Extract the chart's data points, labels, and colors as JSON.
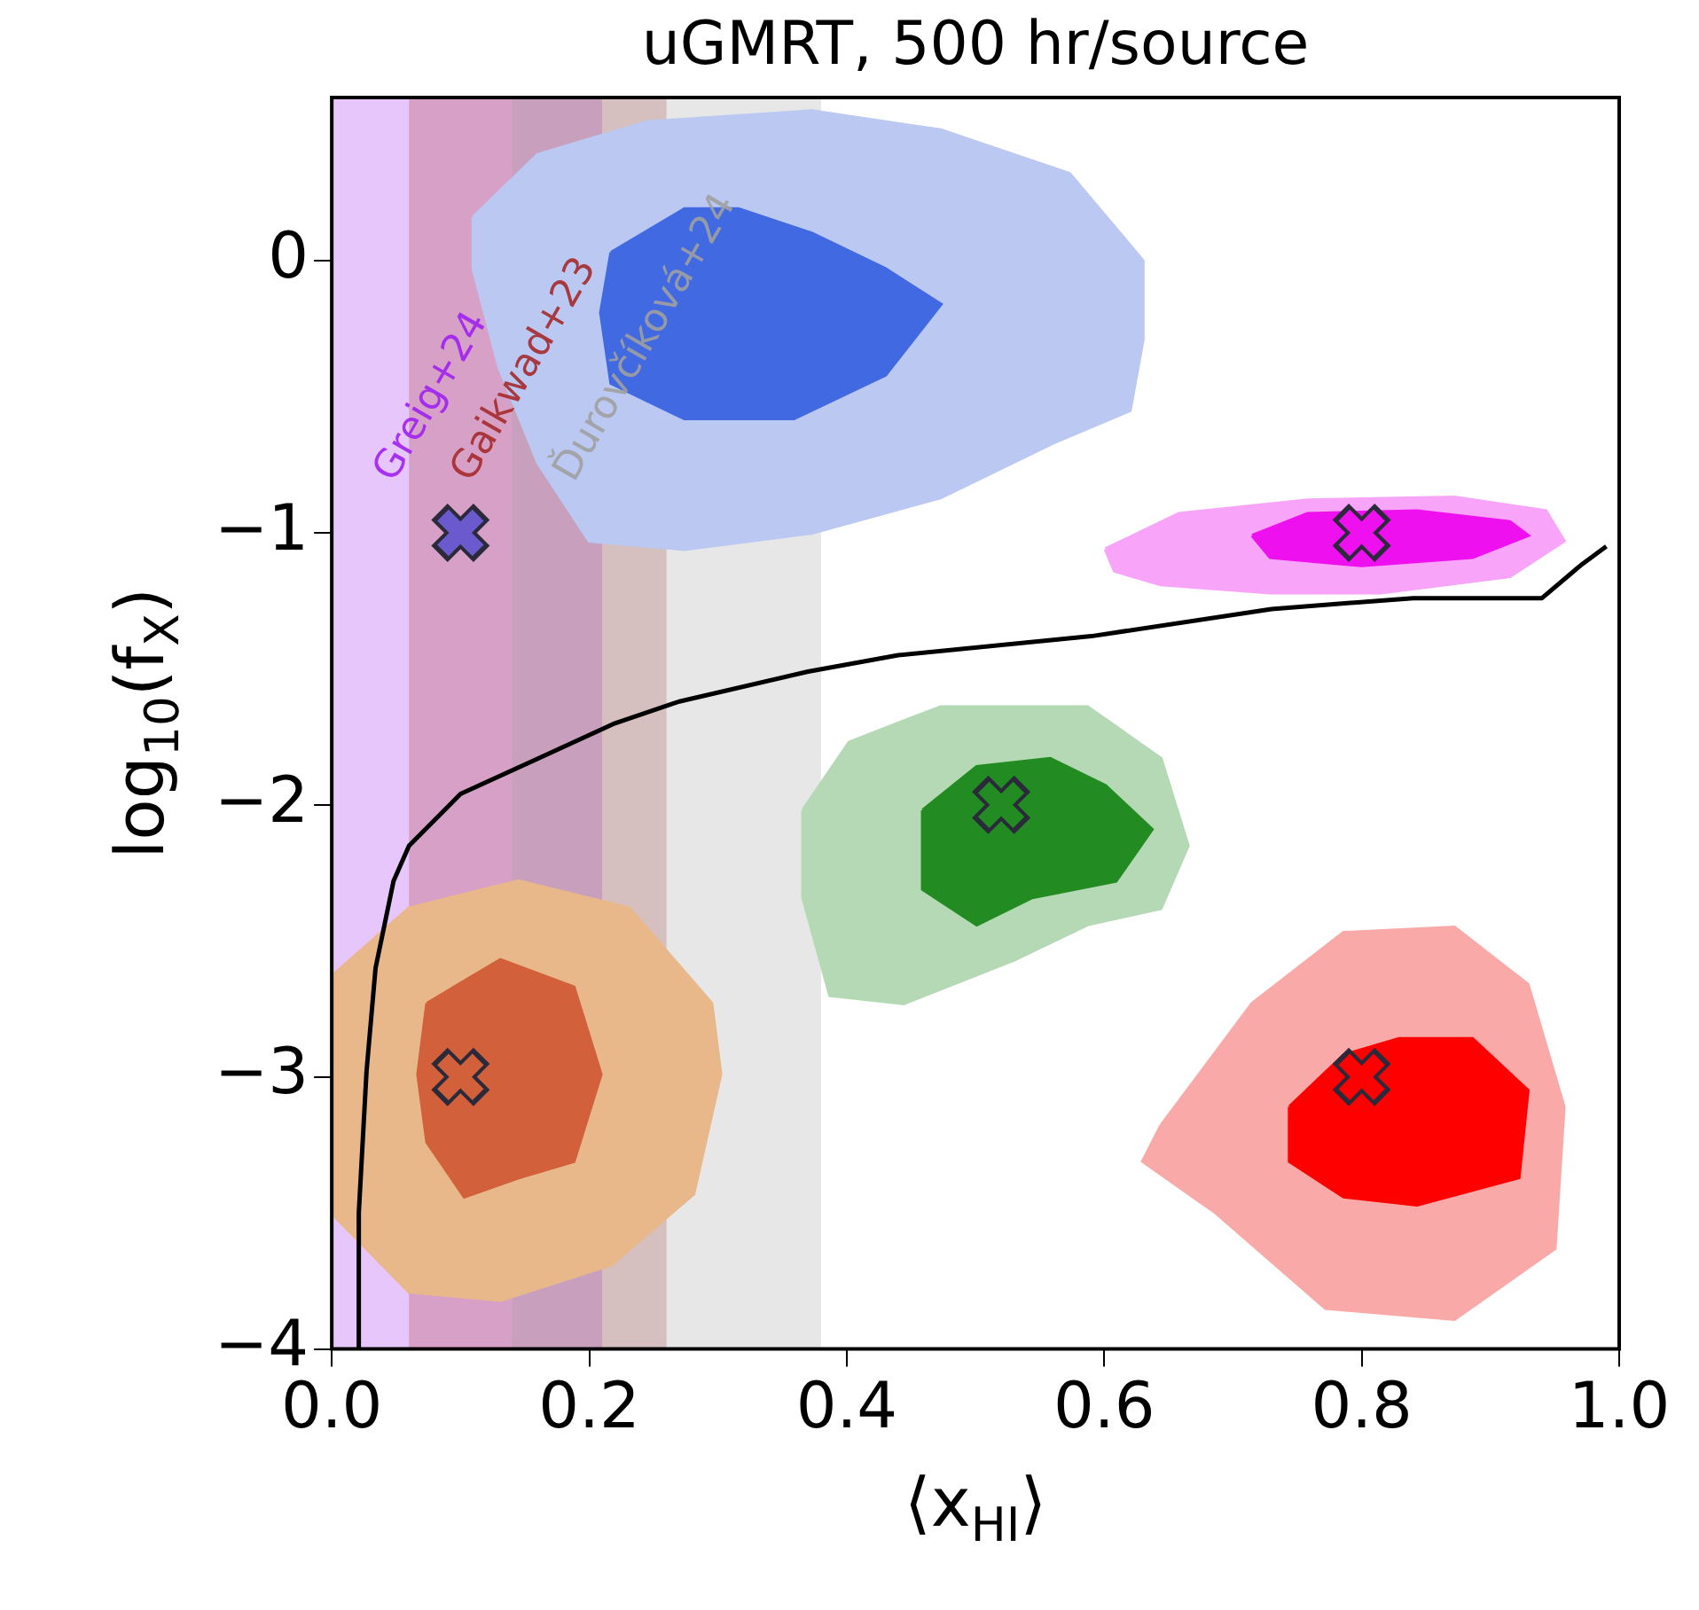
{
  "chart_data": {
    "type": "area",
    "title": "uGMRT, 500 hr/source",
    "xlabel": "⟨x$_{HI}$⟩",
    "ylabel": "log$_{10}$(f$_{X}$)",
    "xlim": [
      0,
      1
    ],
    "xticks": [
      {
        "value": 0,
        "label": "0.0"
      },
      {
        "value": 0.2,
        "label": "0.2"
      },
      {
        "value": 0.4,
        "label": "0.4"
      },
      {
        "value": 0.6,
        "label": "0.6"
      },
      {
        "value": 0.8,
        "label": "0.8"
      },
      {
        "value": 1,
        "label": "1.0"
      }
    ],
    "ylim": [
      -4,
      0.6
    ],
    "yticks": [
      {
        "value": -4,
        "label": "−4"
      },
      {
        "value": -3,
        "label": "−3"
      },
      {
        "value": -2,
        "label": "−2"
      },
      {
        "value": -1,
        "label": "−1"
      },
      {
        "value": 0,
        "label": "0"
      }
    ],
    "grid": false,
    "legend": false,
    "bands": [
      {
        "axis": "x",
        "from": 0,
        "to": 0.21,
        "label": "Greig+24",
        "color": "#a020f0"
      },
      {
        "axis": "x",
        "from": 0.06,
        "to": 0.26,
        "label": "Gaikwad+23",
        "color": "#a52a2a"
      },
      {
        "axis": "x",
        "from": 0.14,
        "to": 0.38,
        "label": "Ďurovčíková+24",
        "color": "#a0a0a0"
      }
    ],
    "series": [
      {
        "color": "#bac8f2",
        "x": [
          0.11,
          0.16,
          0.245,
          0.373,
          0.473,
          0.573,
          0.63,
          0.63,
          0.62,
          0.56,
          0.473,
          0.373,
          0.274,
          0.2,
          0.16,
          0.13,
          0.11
        ],
        "values": [
          0.16,
          0.39,
          0.51,
          0.55,
          0.48,
          0.32,
          0,
          -0.29,
          -0.55,
          -0.67,
          -0.87,
          -1,
          -1.06,
          -1.03,
          -0.74,
          -0.39,
          -0.03
        ]
      },
      {
        "color": "#4169e1",
        "x": [
          0.217,
          0.274,
          0.316,
          0.373,
          0.43,
          0.473,
          0.43,
          0.359,
          0.274,
          0.217,
          0.209
        ],
        "values": [
          0.03,
          0.19,
          0.19,
          0.1,
          -0.03,
          -0.16,
          -0.42,
          -0.58,
          -0.58,
          -0.45,
          -0.19
        ]
      },
      {
        "color": "#f8a4f8",
        "x": [
          0.601,
          0.658,
          0.758,
          0.872,
          0.943,
          0.957,
          0.915,
          0.815,
          0.729,
          0.644,
          0.608
        ],
        "values": [
          -1.06,
          -0.93,
          -0.88,
          -0.87,
          -0.92,
          -1.03,
          -1.16,
          -1.22,
          -1.22,
          -1.19,
          -1.14
        ]
      },
      {
        "color": "#ee10ee",
        "x": [
          0.715,
          0.758,
          0.843,
          0.915,
          0.929,
          0.886,
          0.8,
          0.729
        ],
        "values": [
          -1.01,
          -0.93,
          -0.92,
          -0.96,
          -1.01,
          -1.09,
          -1.12,
          -1.09
        ]
      },
      {
        "color": "#b4d9b4",
        "x": [
          0.366,
          0.402,
          0.473,
          0.587,
          0.644,
          0.665,
          0.644,
          0.587,
          0.53,
          0.444,
          0.387,
          0.366
        ],
        "values": [
          -2.02,
          -1.77,
          -1.64,
          -1.64,
          -1.83,
          -2.15,
          -2.38,
          -2.44,
          -2.57,
          -2.73,
          -2.7,
          -2.34
        ]
      },
      {
        "color": "#228b22",
        "x": [
          0.459,
          0.501,
          0.558,
          0.601,
          0.637,
          0.609,
          0.544,
          0.501,
          0.459
        ],
        "values": [
          -2.02,
          -1.86,
          -1.83,
          -1.93,
          -2.09,
          -2.28,
          -2.34,
          -2.44,
          -2.31
        ]
      },
      {
        "color": "#f9aaa8",
        "x": [
          0.644,
          0.715,
          0.786,
          0.872,
          0.929,
          0.957,
          0.95,
          0.872,
          0.772,
          0.687,
          0.63
        ],
        "values": [
          -3.18,
          -2.73,
          -2.47,
          -2.45,
          -2.66,
          -3.11,
          -3.63,
          -3.89,
          -3.85,
          -3.5,
          -3.31
        ]
      },
      {
        "color": "#ff0000",
        "x": [
          0.744,
          0.786,
          0.829,
          0.886,
          0.929,
          0.922,
          0.843,
          0.786,
          0.744
        ],
        "values": [
          -3.11,
          -2.92,
          -2.86,
          -2.86,
          -3.05,
          -3.37,
          -3.47,
          -3.44,
          -3.31
        ]
      },
      {
        "color": "#e8b88a",
        "x": [
          0,
          0.06,
          0.145,
          0.231,
          0.295,
          0.302,
          0.281,
          0.217,
          0.131,
          0.06,
          0
        ],
        "values": [
          -2.63,
          -2.38,
          -2.28,
          -2.38,
          -2.73,
          -2.99,
          -3.43,
          -3.69,
          -3.82,
          -3.79,
          -3.5
        ]
      },
      {
        "color": "#d2603a",
        "x": [
          0.074,
          0.131,
          0.188,
          0.209,
          0.188,
          0.145,
          0.103,
          0.074,
          0.067
        ],
        "values": [
          -2.73,
          -2.57,
          -2.67,
          -2.99,
          -3.31,
          -3.37,
          -3.44,
          -3.24,
          -2.99
        ]
      },
      {
        "type": "line",
        "color": "#000000",
        "x": [
          0.021,
          0.021,
          0.027,
          0.034,
          0.048,
          0.06,
          0.1,
          0.16,
          0.22,
          0.27,
          0.37,
          0.44,
          0.59,
          0.73,
          0.84,
          0.94,
          0.97,
          0.99
        ],
        "values": [
          -4,
          -3.5,
          -2.98,
          -2.6,
          -2.28,
          -2.15,
          -1.96,
          -1.83,
          -1.7,
          -1.62,
          -1.51,
          -1.45,
          -1.38,
          -1.28,
          -1.24,
          -1.24,
          -1.12,
          -1.05
        ]
      },
      {
        "type": "scatter",
        "marker": "cross",
        "colors": [
          "#6a5acd",
          "#ee10ee",
          "#228b22",
          "#ff0000",
          "#d2603a"
        ],
        "x": [
          0.1,
          0.8,
          0.52,
          0.8,
          0.1
        ],
        "values": [
          -1,
          -1,
          -2,
          -3,
          -3
        ]
      }
    ]
  }
}
